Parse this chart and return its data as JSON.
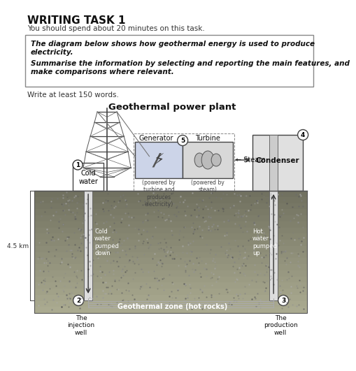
{
  "title_text": "WRITING TASK 1",
  "subtitle_text": "You should spend about 20 minutes on this task.",
  "box_line1": "The diagram below shows how geothermal energy is used to produce",
  "box_line2": "electricity.",
  "box_line3": "",
  "box_line4": "Summarise the information by selecting and reporting the main features, and",
  "box_line5": "make comparisons where relevant.",
  "write_text": "Write at least 150 words.",
  "diagram_title": "Geothermal power plant",
  "bg_color": "#ffffff",
  "ground_color_top": "#aaaaaa",
  "ground_color_mid": "#888878",
  "ground_color_bot": "#6a6a5a",
  "box_border_color": "#888888",
  "label_1": "1",
  "label_2": "2",
  "label_3": "3",
  "label_4": "4",
  "label_5": "5",
  "cold_water_label": "Cold\nwater",
  "injection_well_label": "The\ninjection\nwell",
  "production_well_label": "The\nproduction\nwell",
  "cold_pumped_label": "Cold\nwater\npumped\ndown",
  "hot_pumped_label": "Hot\nwater\npumped\nup",
  "geothermal_zone_label": "Geothermal zone (hot rocks)",
  "generator_label": "Generator",
  "turbine_label": "Turbine",
  "steam_label": "← Steam",
  "condenser_label": "Condenser",
  "generator_sub": "(powered by\nturbine and\nproduces\nelectricity)",
  "turbine_sub": "(powered by\nsteam)",
  "km_label": "4.5 km"
}
